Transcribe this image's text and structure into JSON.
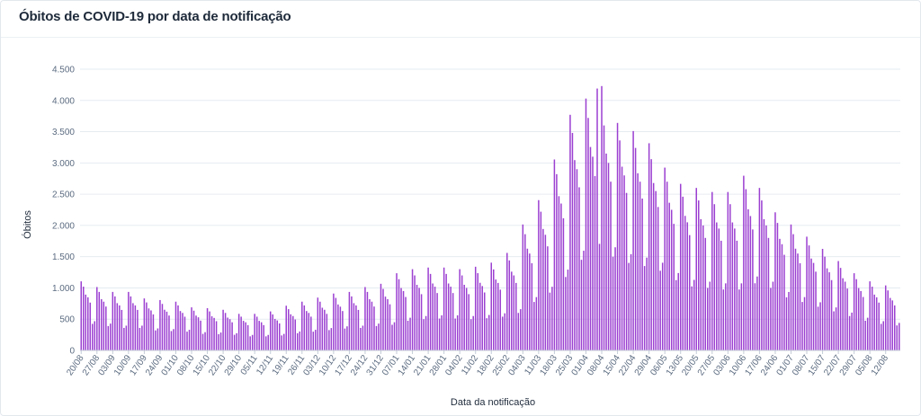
{
  "card": {
    "title": "Óbitos de COVID-19 por data de notificação"
  },
  "colors": {
    "bar": "#9b3fd1",
    "grid": "#e6ebf1",
    "axis": "#c3ccd6"
  },
  "chart_data": {
    "type": "bar",
    "title": "Óbitos de COVID-19 por data de notificação",
    "xlabel": "Data da notificação",
    "ylabel": "Óbitos",
    "ylim": [
      0,
      4500
    ],
    "yticks": [
      0,
      500,
      1000,
      1500,
      2000,
      2500,
      3000,
      3500,
      4000,
      4500
    ],
    "ytick_labels": [
      "0",
      "500",
      "1.000",
      "1.500",
      "2.000",
      "2.500",
      "3.000",
      "3.500",
      "4.000",
      "4.500"
    ],
    "grid": true,
    "start_date": "20/08",
    "x_tick_labels": [
      "20/08",
      "27/08",
      "03/09",
      "10/09",
      "17/09",
      "24/09",
      "01/10",
      "08/10",
      "15/10",
      "22/10",
      "29/10",
      "05/11",
      "12/11",
      "19/11",
      "26/11",
      "03/12",
      "10/12",
      "17/12",
      "24/12",
      "31/12",
      "07/01",
      "14/01",
      "21/01",
      "28/01",
      "04/02",
      "11/02",
      "18/02",
      "25/02",
      "04/03",
      "11/03",
      "18/03",
      "25/03",
      "01/04",
      "08/04",
      "15/04",
      "22/04",
      "29/04",
      "06/05",
      "13/05",
      "20/05",
      "27/05",
      "03/06",
      "10/06",
      "17/06",
      "24/06",
      "01/07",
      "08/07",
      "15/07",
      "22/07",
      "29/07",
      "05/08",
      "12/08"
    ],
    "weekly_profile": [
      1.3,
      1.2,
      1.05,
      1.0,
      0.9,
      0.5,
      0.55
    ],
    "weekly_level": [
      850,
      780,
      720,
      720,
      640,
      620,
      600,
      530,
      520,
      500,
      450,
      450,
      480,
      550,
      600,
      650,
      700,
      720,
      780,
      820,
      950,
      1000,
      1020,
      1020,
      1000,
      1030,
      1080,
      1200,
      1550,
      1850,
      2350,
      2900,
      3100,
      3000,
      2800,
      2700,
      2550,
      2250,
      2050,
      2000,
      1950,
      1950,
      2150,
      2000,
      1700,
      1550,
      1400,
      1250,
      1100,
      950,
      850,
      800
    ],
    "peaks": [
      4230,
      4190
    ]
  }
}
